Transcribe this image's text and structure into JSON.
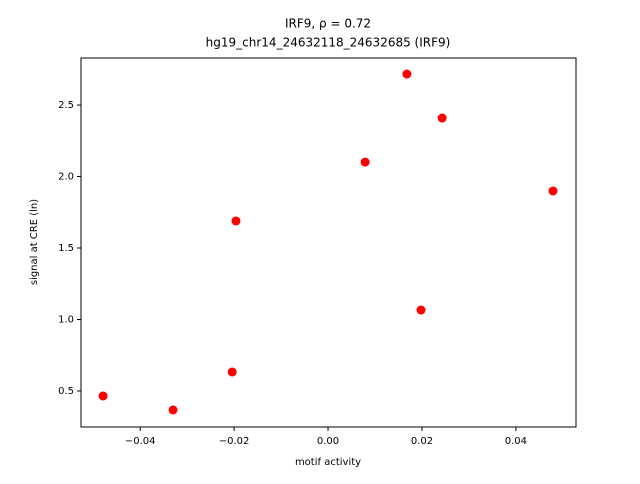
{
  "chart_data": {
    "type": "scatter",
    "title": "IRF9, ρ = 0.72",
    "subtitle": "hg19_chr14_24632118_24632685 (IRF9)",
    "x_label": "motif activity",
    "y_label": "signal at CRE (ln)",
    "color": "#ff0000",
    "x": [
      -0.0479,
      -0.033,
      -0.0204,
      -0.0196,
      0.0079,
      0.0168,
      0.0198,
      0.0243,
      0.0479
    ],
    "values": [
      0.465,
      0.367,
      0.633,
      1.689,
      2.101,
      2.717,
      1.066,
      2.409,
      1.899
    ],
    "xlim": [
      -0.0526,
      0.0528
    ],
    "ylim": [
      0.248,
      2.829
    ],
    "xticks": [
      {
        "value": -0.04,
        "label": "−0.04"
      },
      {
        "value": -0.02,
        "label": "−0.02"
      },
      {
        "value": 0,
        "label": "0.00"
      },
      {
        "value": 0.02,
        "label": "0.02"
      },
      {
        "value": 0.04,
        "label": "0.04"
      }
    ],
    "yticks": [
      0.5,
      {
        "value": 1,
        "label": "1.0"
      },
      1.5,
      {
        "value": 2,
        "label": "2.0"
      },
      2.5
    ]
  }
}
